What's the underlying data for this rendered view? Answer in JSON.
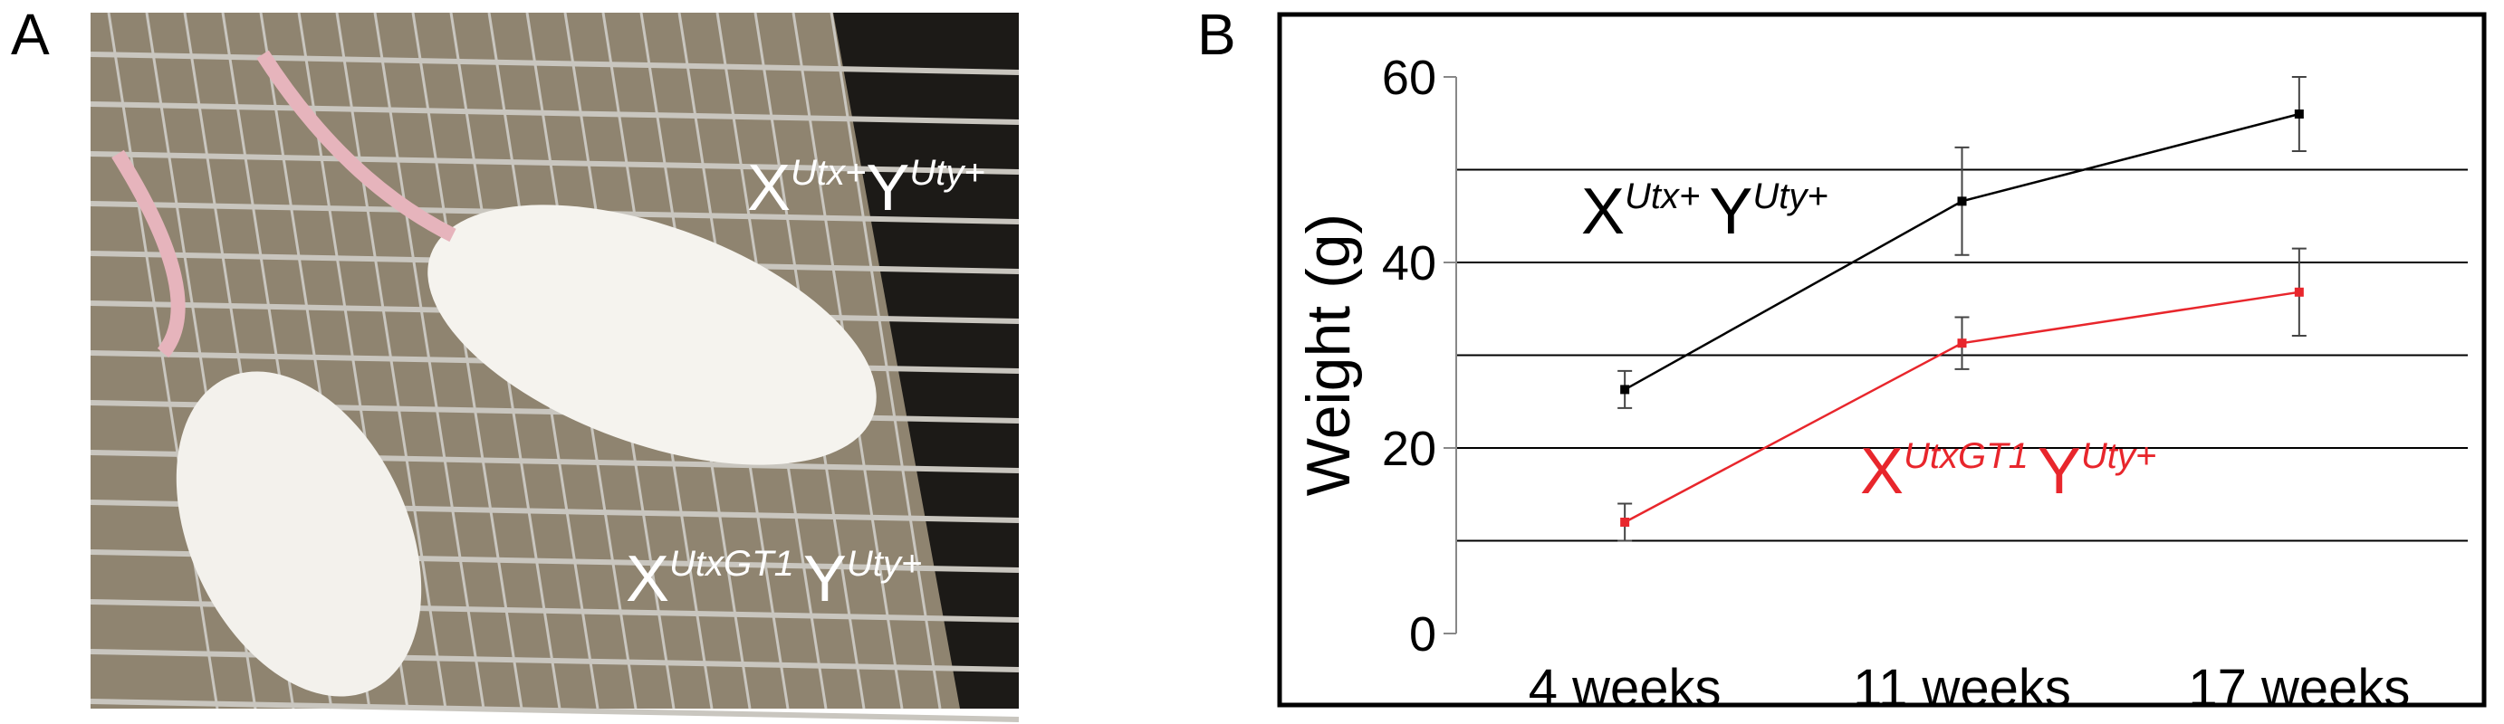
{
  "panel_a": {
    "label": "A",
    "annotations": [
      {
        "base1": "X",
        "sup1": "Utx+",
        "base2": "Y",
        "sup2": "Uty+"
      },
      {
        "base1": "X",
        "sup1": "UtxGT1",
        "base2": "Y",
        "sup2": "Uty+"
      }
    ]
  },
  "chart_data": {
    "type": "line",
    "panel_label": "B",
    "ylabel": "Weight (g)",
    "categories": [
      "4 weeks",
      "11 weeks",
      "17 weeks"
    ],
    "series": [
      {
        "label": {
          "base1": "X",
          "sup1": "Utx+",
          "base2": "Y",
          "sup2": "Uty+"
        },
        "color": "#000000",
        "values": [
          26.3,
          46.6,
          56
        ],
        "errors": [
          2,
          5.8,
          4
        ]
      },
      {
        "label": {
          "base1": "X",
          "sup1": "UtxGT1",
          "base2": "Y",
          "sup2": "Uty+"
        },
        "color": "#e8262c",
        "values": [
          12,
          31.3,
          36.8
        ],
        "errors": [
          2,
          2.8,
          4.7
        ]
      }
    ],
    "ylim": [
      0,
      60
    ],
    "yticks": [
      0,
      20,
      40,
      60
    ],
    "grid_lines": [
      10,
      20,
      30,
      40,
      50
    ]
  }
}
